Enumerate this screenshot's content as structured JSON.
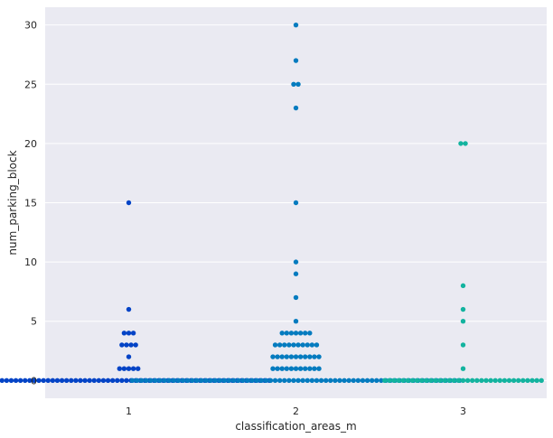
{
  "chart_data": {
    "type": "scatter",
    "subtype": "swarm",
    "xlabel": "classification_areas_m",
    "ylabel": "num_parking_block",
    "categories": [
      "1",
      "2",
      "3"
    ],
    "ylim": [
      -1.5,
      31.5
    ],
    "yticks": [
      0,
      5,
      10,
      15,
      20,
      25,
      30
    ],
    "grid": true,
    "background": "#eaeaf2",
    "series": [
      {
        "category": "1",
        "color": "#0343c6",
        "values": [
          0,
          0,
          0,
          0,
          0,
          0,
          0,
          0,
          0,
          0,
          0,
          0,
          0,
          0,
          0,
          0,
          0,
          0,
          0,
          0,
          0,
          0,
          0,
          0,
          0,
          0,
          0,
          0,
          0,
          0,
          0,
          0,
          0,
          0,
          0,
          0,
          0,
          0,
          0,
          0,
          0,
          0,
          0,
          0,
          0,
          0,
          0,
          0,
          0,
          0,
          0,
          0,
          0,
          0,
          0,
          0,
          0,
          0,
          0,
          0,
          0,
          0,
          1,
          1,
          1,
          1,
          1,
          2,
          3,
          3,
          3,
          3,
          4,
          4,
          4,
          6,
          15
        ]
      },
      {
        "category": "2",
        "color": "#047bbf",
        "values": [
          0,
          0,
          0,
          0,
          0,
          0,
          0,
          0,
          0,
          0,
          0,
          0,
          0,
          0,
          0,
          0,
          0,
          0,
          0,
          0,
          0,
          0,
          0,
          0,
          0,
          0,
          0,
          0,
          0,
          0,
          0,
          0,
          0,
          0,
          0,
          0,
          0,
          0,
          0,
          0,
          0,
          0,
          0,
          0,
          0,
          0,
          0,
          0,
          0,
          0,
          0,
          0,
          0,
          0,
          0,
          0,
          0,
          0,
          0,
          0,
          0,
          0,
          0,
          0,
          0,
          0,
          0,
          0,
          0,
          0,
          0,
          0,
          1,
          1,
          1,
          1,
          1,
          1,
          1,
          1,
          1,
          1,
          1,
          2,
          2,
          2,
          2,
          2,
          2,
          2,
          2,
          2,
          2,
          2,
          3,
          3,
          3,
          3,
          3,
          3,
          3,
          3,
          3,
          3,
          4,
          4,
          4,
          4,
          4,
          4,
          4,
          5,
          7,
          9,
          10,
          15,
          23,
          25,
          25,
          27,
          30
        ]
      },
      {
        "category": "3",
        "color": "#13b39f",
        "values": [
          0,
          0,
          0,
          0,
          0,
          0,
          0,
          0,
          0,
          0,
          0,
          0,
          0,
          0,
          0,
          0,
          0,
          0,
          0,
          0,
          0,
          0,
          0,
          0,
          0,
          0,
          0,
          0,
          0,
          0,
          0,
          0,
          0,
          0,
          0,
          1,
          3,
          5,
          6,
          8,
          20,
          20
        ]
      }
    ]
  }
}
